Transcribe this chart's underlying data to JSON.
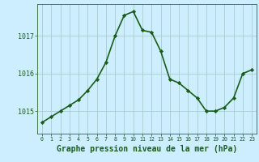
{
  "x": [
    0,
    1,
    2,
    3,
    4,
    5,
    6,
    7,
    8,
    9,
    10,
    11,
    12,
    13,
    14,
    15,
    16,
    17,
    18,
    19,
    20,
    21,
    22,
    23
  ],
  "y": [
    1014.7,
    1014.85,
    1015.0,
    1015.15,
    1015.3,
    1015.55,
    1015.85,
    1016.3,
    1017.0,
    1017.55,
    1017.65,
    1017.15,
    1017.1,
    1016.6,
    1015.85,
    1015.75,
    1015.55,
    1015.35,
    1015.0,
    1015.0,
    1015.1,
    1015.35,
    1016.0,
    1016.1
  ],
  "line_color": "#1a5c1a",
  "marker": "D",
  "marker_size": 2.2,
  "linewidth": 1.2,
  "bg_color": "#cceeff",
  "grid_color": "#aacccc",
  "axis_color": "#336633",
  "tick_label_color": "#1a5c1a",
  "xlabel": "Graphe pression niveau de la mer (hPa)",
  "xlabel_color": "#1a5c1a",
  "xlabel_fontsize": 7,
  "ytick_labels": [
    "1015",
    "1016",
    "1017"
  ],
  "yticks": [
    1015,
    1016,
    1017
  ],
  "ylim": [
    1014.4,
    1017.85
  ],
  "xlim": [
    -0.5,
    23.5
  ]
}
